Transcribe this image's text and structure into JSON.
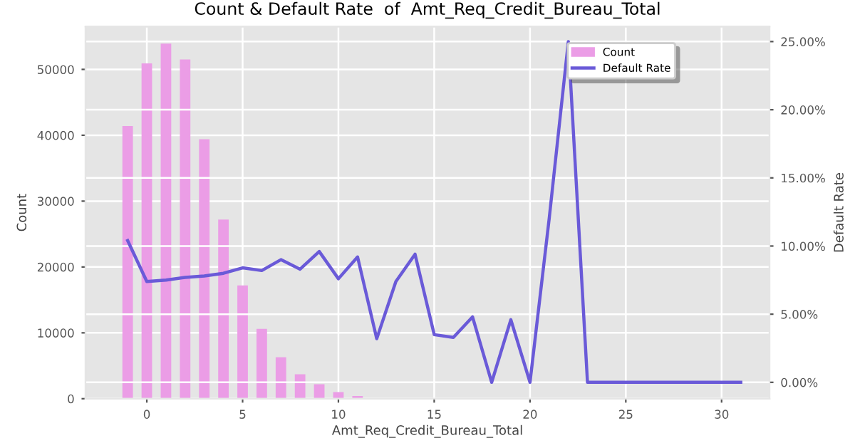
{
  "chart_data": {
    "type": "bar",
    "title": "Count & Default Rate  of  Amt_Req_Credit_Bureau_Total",
    "xlabel": "Amt_Req_Credit_Bureau_Total",
    "ylabel": "Count",
    "y2label": "Default Rate",
    "xlim": [
      -3.2,
      32.5
    ],
    "xticks": [
      0,
      5,
      10,
      15,
      20,
      25,
      30
    ],
    "ylim": [
      0,
      56500
    ],
    "yticks": [
      0,
      10000,
      20000,
      30000,
      40000,
      50000
    ],
    "y2lim": [
      -1.2,
      26.1
    ],
    "y2ticks": [
      {
        "value": 0,
        "label": "0.00%"
      },
      {
        "value": 5,
        "label": "5.00%"
      },
      {
        "value": 10,
        "label": "10.00%"
      },
      {
        "value": 15,
        "label": "15.00%"
      },
      {
        "value": 20,
        "label": "20.00%"
      },
      {
        "value": 25,
        "label": "25.00%"
      }
    ],
    "grid": true,
    "legend": "top right",
    "series": [
      {
        "name": "Count",
        "color": "#eb9de6",
        "x": [
          -1,
          0,
          1,
          2,
          3,
          4,
          5,
          6,
          7,
          8,
          9,
          10,
          11
        ],
        "values": [
          41400,
          50900,
          53900,
          51500,
          39400,
          27200,
          17200,
          10600,
          6300,
          3700,
          2200,
          1000,
          400
        ]
      },
      {
        "name": "Default Rate",
        "type": "line",
        "axis": "y2",
        "color": "#6a5ad8",
        "x": [
          -1,
          0,
          1,
          2,
          3,
          4,
          5,
          6,
          7,
          8,
          9,
          10,
          11,
          12,
          13,
          14,
          15,
          16,
          17,
          18,
          19,
          20,
          21,
          22,
          23,
          24,
          25,
          26,
          27,
          28,
          29,
          30,
          31
        ],
        "values": [
          10.4,
          7.4,
          7.5,
          7.7,
          7.8,
          8.0,
          8.4,
          8.2,
          9.0,
          8.3,
          9.6,
          7.6,
          9.2,
          3.2,
          7.4,
          9.4,
          3.5,
          3.3,
          4.8,
          0,
          4.6,
          0,
          12,
          25,
          0,
          0,
          0,
          0,
          0,
          0,
          0,
          0,
          0
        ]
      }
    ]
  }
}
